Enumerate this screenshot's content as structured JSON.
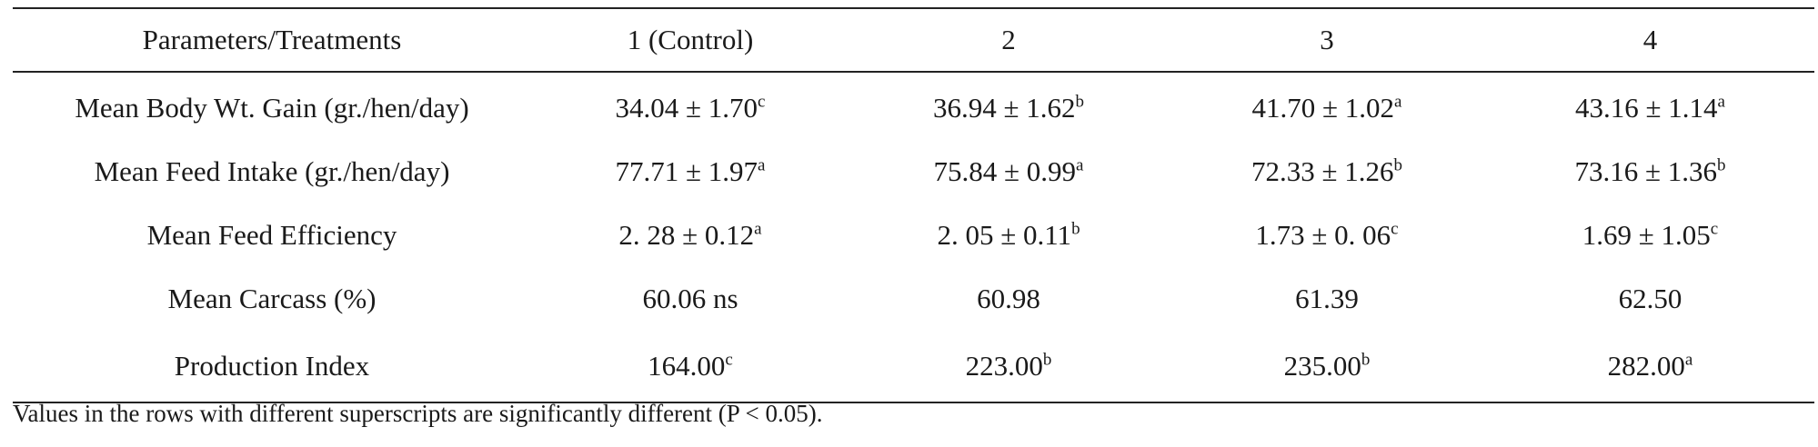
{
  "table": {
    "headers": [
      "Parameters/Treatments",
      "1 (Control)",
      "2",
      "3",
      "4"
    ],
    "rows": [
      {
        "label": "Mean Body Wt. Gain (gr./hen/day)",
        "cells": [
          {
            "value": "34.04 ± 1.70",
            "sup": "c"
          },
          {
            "value": "36.94 ± 1.62",
            "sup": "b"
          },
          {
            "value": "41.70 ± 1.02",
            "sup": "a"
          },
          {
            "value": "43.16 ± 1.14",
            "sup": "a"
          }
        ]
      },
      {
        "label": "Mean Feed Intake (gr./hen/day)",
        "cells": [
          {
            "value": "77.71 ± 1.97",
            "sup": "a"
          },
          {
            "value": "75.84 ± 0.99",
            "sup": "a"
          },
          {
            "value": "72.33 ± 1.26",
            "sup": "b"
          },
          {
            "value": "73.16 ± 1.36",
            "sup": "b"
          }
        ]
      },
      {
        "label": "Mean Feed Efficiency",
        "cells": [
          {
            "value": "2. 28 ± 0.12",
            "sup": "a"
          },
          {
            "value": "2. 05 ± 0.11",
            "sup": "b"
          },
          {
            "value": "1.73 ± 0. 06",
            "sup": "c"
          },
          {
            "value": "1.69 ± 1.05",
            "sup": "c"
          }
        ]
      },
      {
        "label": "Mean Carcass (%)",
        "cells": [
          {
            "value": "60.06 ns",
            "sup": ""
          },
          {
            "value": "60.98",
            "sup": ""
          },
          {
            "value": "61.39",
            "sup": ""
          },
          {
            "value": "62.50",
            "sup": ""
          }
        ]
      },
      {
        "label": "Production Index",
        "cells": [
          {
            "value": "164.00",
            "sup": "c"
          },
          {
            "value": "223.00",
            "sup": "b"
          },
          {
            "value": "235.00",
            "sup": "b"
          },
          {
            "value": "282.00",
            "sup": "a"
          }
        ]
      }
    ]
  },
  "footnote": "Values in the rows with different superscripts are significantly different (P < 0.05)."
}
